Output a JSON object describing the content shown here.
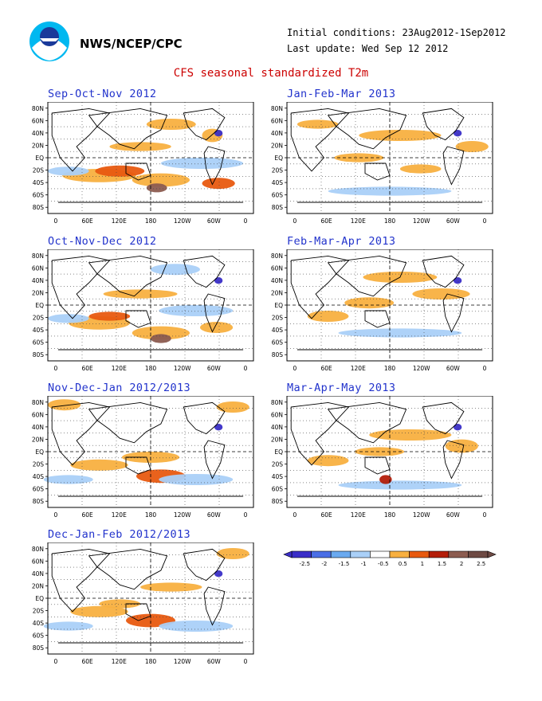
{
  "header": {
    "org": "NWS/NCEP/CPC",
    "logo_icon": "noaa-logo-icon",
    "initial_conditions": "Initial conditions: 23Aug2012-1Sep2012",
    "last_update": "Last update: Wed Sep 12 2012",
    "title": "CFS seasonal standardized T2m"
  },
  "lat_labels": [
    "80N",
    "60N",
    "40N",
    "20N",
    "EQ",
    "20S",
    "40S",
    "60S",
    "80S"
  ],
  "lon_labels": [
    "0",
    "60E",
    "120E",
    "180",
    "120W",
    "60W",
    "0"
  ],
  "panels": [
    {
      "title": "Sep-Oct-Nov 2012"
    },
    {
      "title": "Jan-Feb-Mar 2013"
    },
    {
      "title": "Oct-Nov-Dec 2012"
    },
    {
      "title": "Feb-Mar-Apr 2013"
    },
    {
      "title": "Nov-Dec-Jan 2012/2013"
    },
    {
      "title": "Mar-Apr-May 2013"
    },
    {
      "title": "Dec-Jan-Feb 2012/2013"
    }
  ],
  "colorbar": {
    "labels": [
      "-2.5",
      "-2",
      "-1.5",
      "-1",
      "-0.5",
      "0.5",
      "1",
      "1.5",
      "2",
      "2.5"
    ],
    "colors": [
      "#3a2ec8",
      "#4a6ee6",
      "#6aaaf0",
      "#aad0f8",
      "#ffffff",
      "#f8b040",
      "#e85a10",
      "#b41e0a",
      "#8c5c50",
      "#6e4a44"
    ]
  }
}
